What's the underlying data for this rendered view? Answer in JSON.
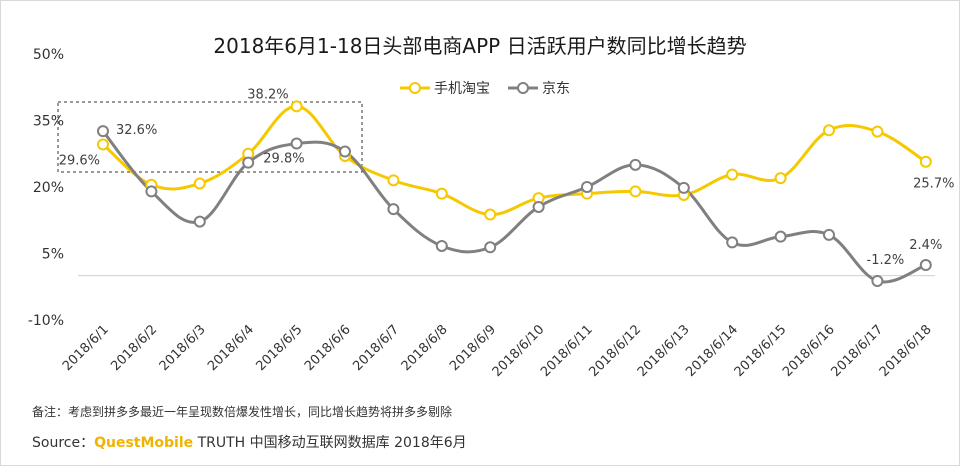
{
  "chart_data": {
    "type": "line",
    "title": "2018年6月1-18日头部电商APP 日活跃用户数同比增长趋势",
    "xlabel": "",
    "ylabel": "",
    "categories": [
      "2018/6/1",
      "2018/6/2",
      "2018/6/3",
      "2018/6/4",
      "2018/6/5",
      "2018/6/6",
      "2018/6/7",
      "2018/6/8",
      "2018/6/9",
      "2018/6/10",
      "2018/6/11",
      "2018/6/12",
      "2018/6/13",
      "2018/6/14",
      "2018/6/15",
      "2018/6/16",
      "2018/6/17",
      "2018/6/18"
    ],
    "yticks": [
      "50%",
      "35%",
      "20%",
      "5%",
      "-10%"
    ],
    "ylim": [
      -10,
      50
    ],
    "grid": false,
    "legend_position": "top-center",
    "series": [
      {
        "name": "手机淘宝",
        "color": "#f5c800",
        "values": [
          29.6,
          20.5,
          20.8,
          27.5,
          38.2,
          27.0,
          21.5,
          18.5,
          13.8,
          17.5,
          18.5,
          19.0,
          18.2,
          22.8,
          22.0,
          32.8,
          32.5,
          25.7
        ]
      },
      {
        "name": "京东",
        "color": "#808080",
        "values": [
          32.6,
          19.0,
          12.2,
          25.5,
          29.8,
          28.0,
          15.0,
          6.7,
          6.4,
          15.5,
          20.0,
          25.0,
          19.8,
          7.5,
          8.8,
          9.2,
          -1.2,
          2.4
        ]
      }
    ],
    "data_labels": [
      {
        "series": 0,
        "index": 0,
        "text": "29.6%"
      },
      {
        "series": 1,
        "index": 0,
        "text": "32.6%"
      },
      {
        "series": 0,
        "index": 4,
        "text": "38.2%"
      },
      {
        "series": 1,
        "index": 4,
        "text": "29.8%"
      },
      {
        "series": 0,
        "index": 17,
        "text": "25.7%"
      },
      {
        "series": 1,
        "index": 16,
        "text": "-1.2%"
      },
      {
        "series": 1,
        "index": 17,
        "text": "2.4%"
      }
    ]
  },
  "footer": {
    "note": "备注：考虑到拼多多最近一年呈现数倍爆发性增长，同比增长趋势将拼多多剔除",
    "source_prefix": "Source：",
    "source_brand": "QuestMobile",
    "source_suffix": " TRUTH 中国移动互联网数据库 2018年6月"
  }
}
